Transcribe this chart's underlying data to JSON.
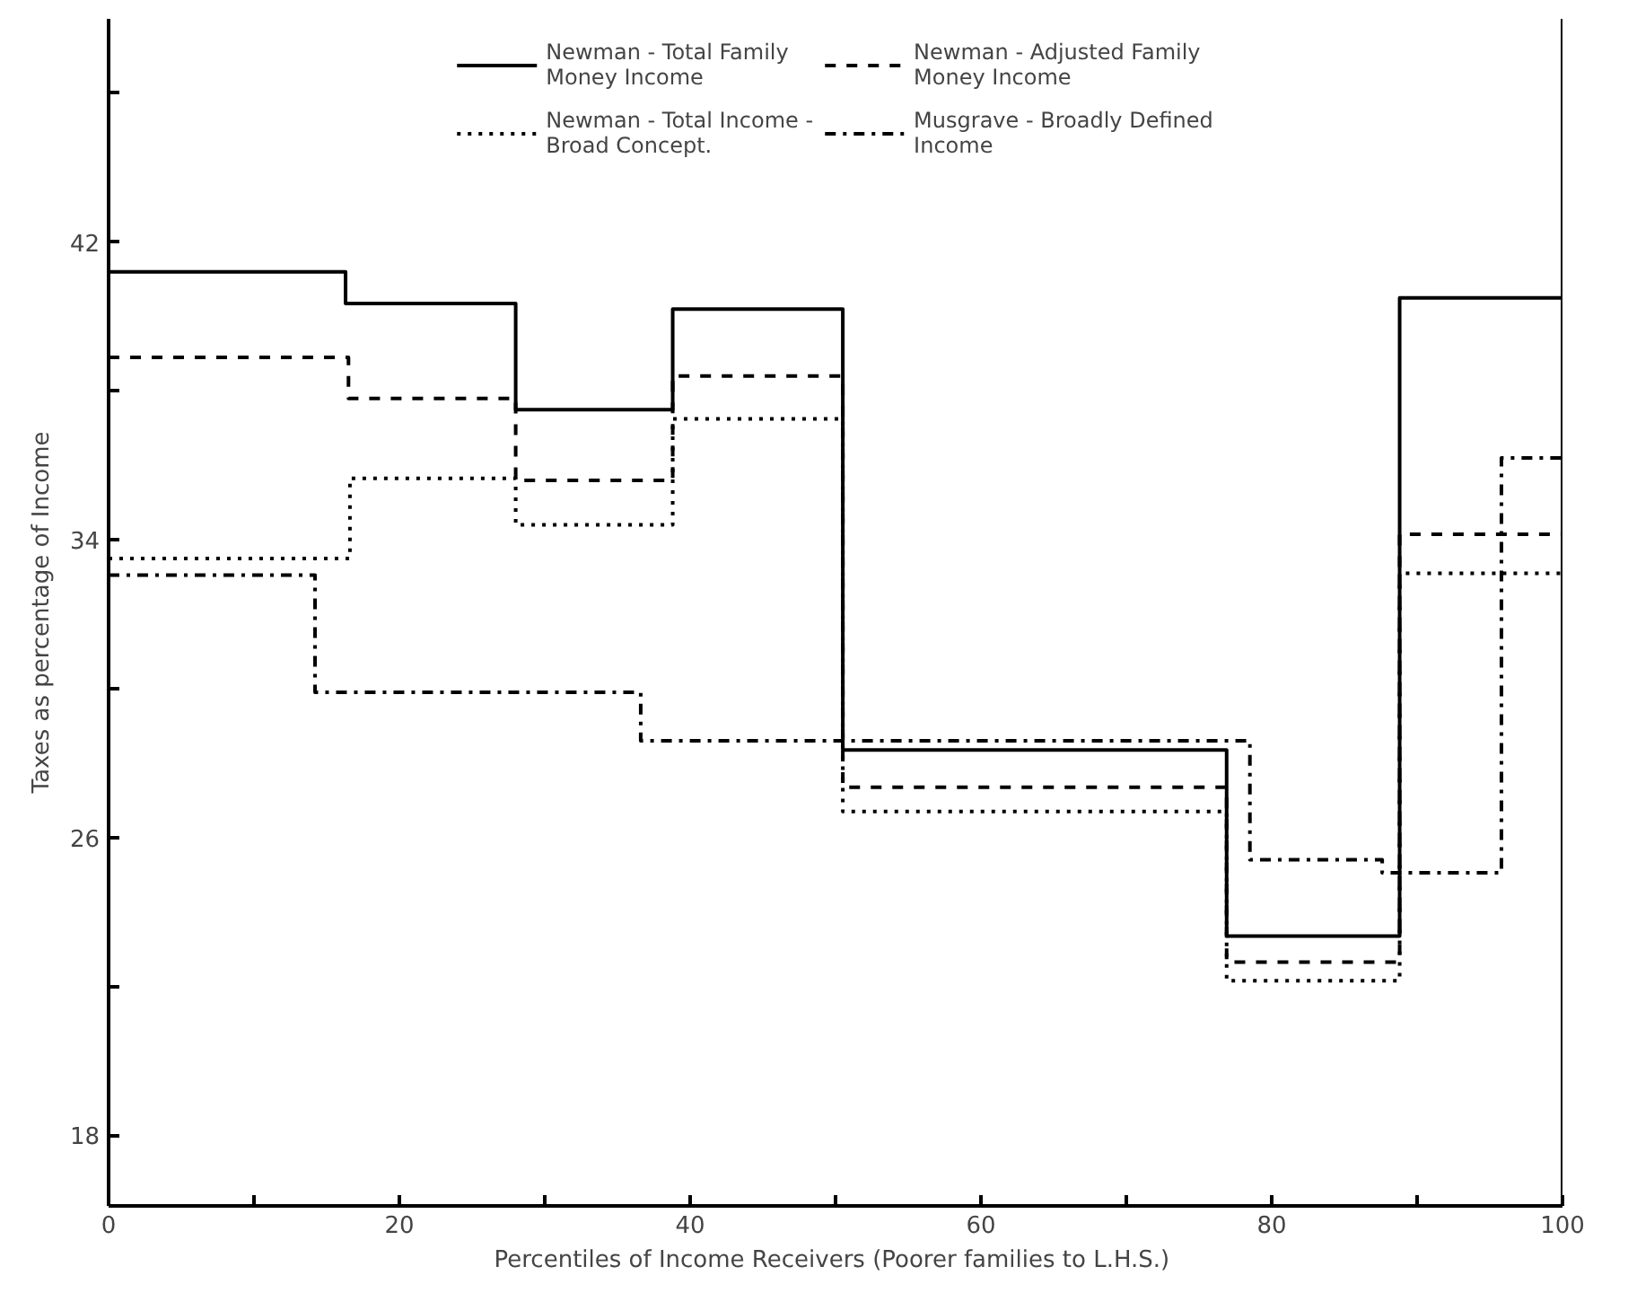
{
  "chart_data": {
    "type": "step",
    "xlabel": "Percentiles of Income Receivers  (Poorer families to L.H.S.)",
    "ylabel": "Taxes as percentage of Income",
    "xlim": [
      0,
      100
    ],
    "ylim": [
      16.1,
      48
    ],
    "xticks": [
      0,
      {
        "value": 10,
        "label": null
      },
      20,
      {
        "value": 30,
        "label": null
      },
      40,
      {
        "value": 50,
        "label": null
      },
      60,
      {
        "value": 70,
        "label": null
      },
      80,
      {
        "value": 90,
        "label": null
      },
      100
    ],
    "yticks": [
      18,
      {
        "value": 22,
        "label": null
      },
      26,
      {
        "value": 30,
        "label": null
      },
      34,
      {
        "value": 38,
        "label": null
      },
      42,
      {
        "value": 46,
        "label": null
      }
    ],
    "grid": false,
    "legend": "top",
    "marker": "none",
    "series": [
      {
        "name": "Newman - Total Family\nMoney Income",
        "color": "#000000",
        "line_style": "solid",
        "x": [
          0,
          16.3,
          28,
          38.8,
          50.5,
          76.9,
          88.8,
          100
        ],
        "values": [
          41.2,
          40.35,
          37.5,
          40.2,
          28.35,
          23.35,
          40.5,
          40.5
        ]
      },
      {
        "name": "Newman - Adjusted Family\nMoney Income",
        "color": "#000000",
        "line_style": "dashed",
        "x": [
          0,
          16.5,
          28,
          38.8,
          50.5,
          76.9,
          88.8,
          100
        ],
        "values": [
          38.9,
          37.8,
          35.6,
          38.4,
          27.35,
          22.65,
          34.15,
          34.15
        ]
      },
      {
        "name": "Newman - Total Income -\nBroad Concept.",
        "color": "#000000",
        "line_style": "dotted",
        "x": [
          0,
          16.6,
          28,
          38.8,
          50.5,
          76.9,
          88.8,
          100
        ],
        "values": [
          33.5,
          35.65,
          34.4,
          37.25,
          26.7,
          22.15,
          33.1,
          33.1
        ]
      },
      {
        "name": "Musgrave - Broadly Defined\nIncome",
        "color": "#000000",
        "line_style": "dashdot",
        "x": [
          0,
          14.2,
          36.6,
          78.5,
          87.6,
          95.8,
          100
        ],
        "values": [
          33.05,
          29.9,
          28.6,
          25.4,
          25.05,
          36.2,
          36.2
        ]
      }
    ]
  }
}
